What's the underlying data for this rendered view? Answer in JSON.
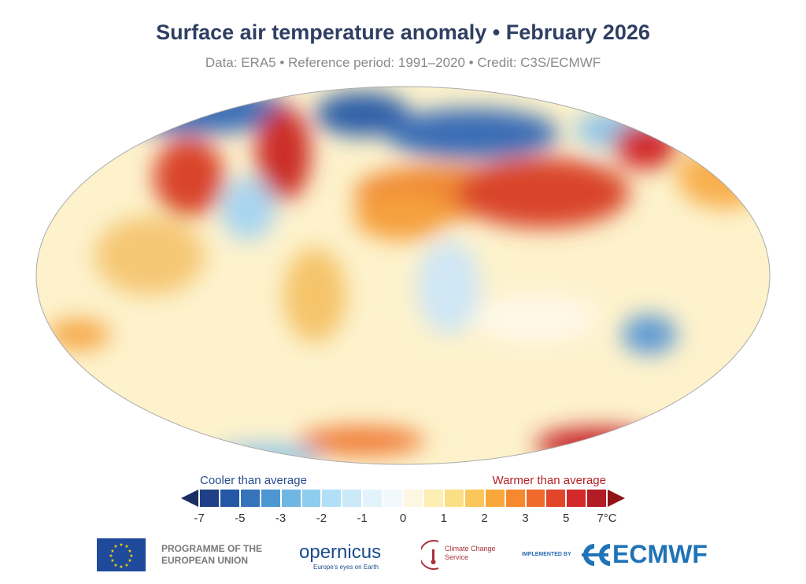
{
  "header": {
    "title": "Surface air temperature anomaly • February 2026",
    "subtitle": "Data: ERA5 • Reference period: 1991–2020 • Credit: C3S/ECMWF"
  },
  "legend": {
    "cool_label": "Cooler than average",
    "warm_label": "Warmer than average",
    "colors": [
      "#1f3f86",
      "#2457a6",
      "#3574bb",
      "#4c96d2",
      "#6fb7e2",
      "#8fcdee",
      "#b1e0f6",
      "#cce9f7",
      "#e2f3fb",
      "#f1f9fd",
      "#fdf6e0",
      "#fdeeb3",
      "#fbdf85",
      "#fbc75c",
      "#f9a73a",
      "#f6882e",
      "#ef6a2c",
      "#e1462b",
      "#d22a2a",
      "#b21c24"
    ],
    "low_arrow_color": "#1a2e62",
    "high_arrow_color": "#8e1418",
    "ticks": [
      "-7",
      "-5",
      "-3",
      "-2",
      "-1",
      "0",
      "1",
      "2",
      "3",
      "5",
      "7°C"
    ]
  },
  "logos": {
    "eu": "PROGRAMME OF THE EUROPEAN UNION",
    "copernicus": "opernicus",
    "copernicus_tagline": "Europe's eyes on Earth",
    "c3s": "Climate Change Service",
    "implemented": "IMPLEMENTED BY",
    "ecmwf": "ECMWF"
  }
}
